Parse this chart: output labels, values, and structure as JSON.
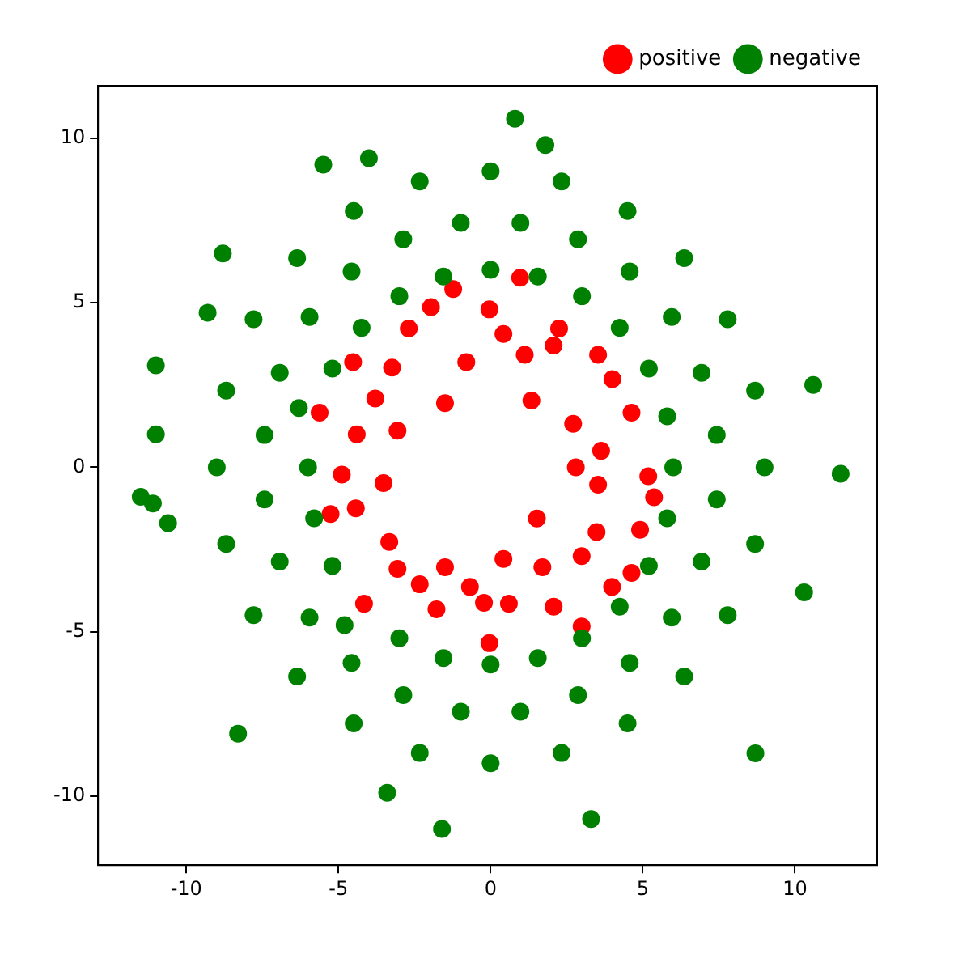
{
  "chart_data": {
    "type": "scatter",
    "marker": "circle",
    "legend": "top right",
    "grid": false,
    "xlim": [
      -12.9,
      12.7
    ],
    "ylim": [
      -12.1,
      11.6
    ],
    "xticks": [
      -10,
      -5,
      0,
      5,
      10
    ],
    "yticks": [
      -10,
      -5,
      0,
      5,
      10
    ],
    "series": [
      {
        "name": "positive",
        "color": "#ff0000",
        "x": [
          -0.8,
          -1.5,
          1.34,
          1.12,
          2.71,
          2.8,
          3.63,
          3.53,
          1.52,
          3.48,
          4.91,
          5.18,
          4.45,
          4.0,
          3.53,
          2.07,
          0.42,
          -0.04,
          -1.96,
          -3.24,
          -3.79,
          -3.06,
          -4.4,
          -4.89,
          -3.52,
          -4.43,
          -3.33,
          -3.06,
          -2.33,
          -1.5,
          -0.68,
          -0.22,
          0.42,
          0.6,
          1.7,
          2.07,
          2.99,
          3.99,
          2.99,
          -0.04,
          -1.78,
          -4.16,
          -5.26,
          -5.62,
          -4.52,
          -2.69,
          -1.23,
          0.97,
          2.25,
          4.63,
          5.37,
          4.63
        ],
        "values": [
          3.2,
          1.95,
          2.03,
          3.42,
          1.32,
          0,
          0.5,
          -0.53,
          -1.56,
          -1.97,
          -1.9,
          -0.27,
          null,
          2.68,
          3.42,
          3.7,
          4.05,
          4.8,
          4.87,
          3.03,
          2.09,
          1.11,
          1.0,
          -0.22,
          -0.48,
          -1.25,
          -2.27,
          -3.09,
          -3.56,
          -3.04,
          -3.64,
          -4.12,
          -2.79,
          -4.15,
          -3.04,
          -4.24,
          -2.7,
          -3.64,
          -4.84,
          -5.35,
          -4.32,
          -4.15,
          -1.42,
          1.66,
          3.2,
          4.22,
          5.42,
          5.76,
          4.22,
          1.66,
          -0.91,
          -3.21
        ]
      },
      {
        "name": "negative",
        "color": "#008000",
        "x": [
          6,
          5.8,
          5.2,
          4.24,
          3.0,
          1.55,
          0,
          -1.55,
          -3.0,
          -4.24,
          -5.2,
          -6.3,
          -6,
          -5.8,
          -5.2,
          -4.8,
          -3.0,
          -1.55,
          0,
          1.55,
          3.0,
          4.24,
          5.2,
          5.8,
          7.43,
          6.93,
          5.95,
          4.57,
          2.87,
          0.98,
          -0.98,
          -2.87,
          -4.57,
          -5.95,
          -6.93,
          -7.43,
          -7.43,
          -6.93,
          -5.95,
          -4.57,
          -2.87,
          -0.98,
          0.98,
          2.87,
          4.57,
          5.95,
          6.93,
          7.43,
          9,
          8.69,
          7.79,
          6.36,
          4.5,
          2.33,
          0,
          -2.33,
          -4.5,
          -6.36,
          -7.79,
          -8.69,
          -9,
          -8.69,
          -7.79,
          -6.36,
          -4.5,
          -2.33,
          0,
          2.33,
          4.5,
          6.36,
          7.79,
          8.69,
          -11.5,
          -11.1,
          -10.6,
          11.5,
          10.3,
          0.8,
          -1.6,
          3.3,
          -8.3,
          -11,
          -11,
          10.6,
          -5.5,
          -4,
          1.8,
          -8.8,
          -9.3,
          8.7,
          -3.4
        ],
        "values": [
          0,
          1.55,
          3.0,
          4.24,
          5.2,
          5.8,
          6,
          5.8,
          5.2,
          4.24,
          3.0,
          1.8,
          0,
          -1.55,
          -3.0,
          -4.8,
          -5.2,
          -5.8,
          -6,
          -5.8,
          -5.2,
          -4.24,
          -3.0,
          -1.55,
          0.98,
          2.87,
          4.57,
          5.95,
          6.93,
          7.43,
          7.43,
          6.93,
          5.95,
          4.57,
          2.87,
          0.98,
          -0.98,
          -2.87,
          -4.57,
          -5.95,
          -6.93,
          -7.43,
          -7.43,
          -6.93,
          -5.95,
          -4.57,
          -2.87,
          -0.98,
          0,
          2.33,
          4.5,
          6.36,
          7.79,
          8.69,
          9,
          8.69,
          7.79,
          6.36,
          4.5,
          2.33,
          0,
          -2.33,
          -4.5,
          -6.36,
          -7.79,
          -8.69,
          -9,
          -8.69,
          -7.79,
          -6.36,
          -4.5,
          -2.33,
          -0.9,
          -1.1,
          -1.7,
          -0.2,
          -3.8,
          10.6,
          -11,
          -10.7,
          -8.1,
          1.0,
          3.1,
          2.5,
          9.2,
          9.4,
          9.8,
          6.5,
          4.7,
          -8.7,
          -9.9
        ]
      }
    ]
  }
}
